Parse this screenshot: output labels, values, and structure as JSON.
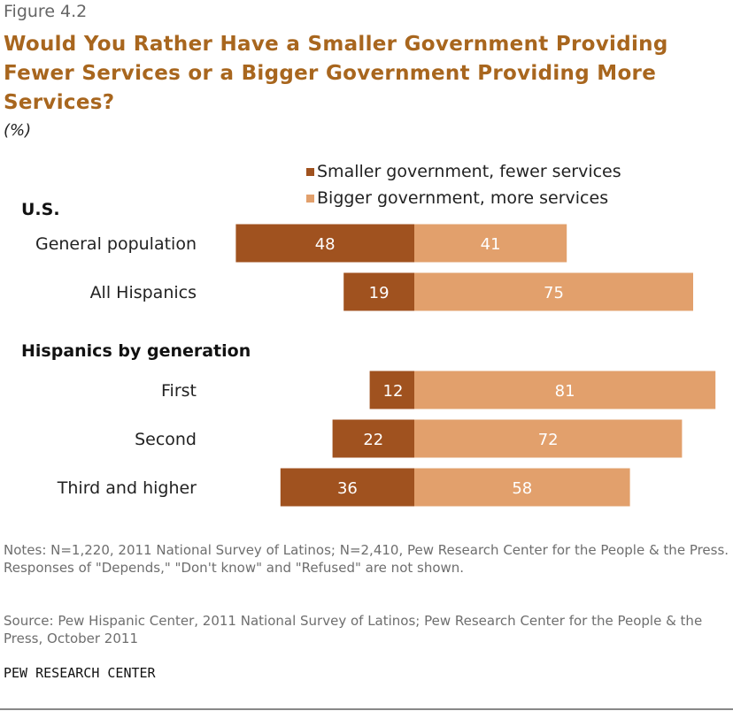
{
  "figure_label": "Figure 4.2",
  "title": "Would You Rather Have a Smaller Government Providing Fewer Services or a Bigger Government Providing More Services?",
  "subtitle": "(%)",
  "colors": {
    "smaller": "#a0521f",
    "bigger": "#e2a06c",
    "title": "#a8661e"
  },
  "chart_data": {
    "type": "bar",
    "orientation": "horizontal",
    "stacking": "diverging",
    "legend_position": "top-right",
    "groups": [
      {
        "label": "U.S.",
        "categories": [
          "General population",
          "All Hispanics"
        ]
      },
      {
        "label": "Hispanics by generation",
        "categories": [
          "First",
          "Second",
          "Third and higher"
        ]
      }
    ],
    "categories": [
      "General population",
      "All Hispanics",
      "First",
      "Second",
      "Third and higher"
    ],
    "series": [
      {
        "name": "Smaller government, fewer services",
        "values": [
          48,
          19,
          12,
          22,
          36
        ]
      },
      {
        "name": "Bigger government, more services",
        "values": [
          41,
          75,
          81,
          72,
          58
        ]
      }
    ]
  },
  "notes": "Notes: N=1,220,  2011 National Survey of Latinos; N=2,410, Pew Research Center for the People & the Press. Responses of \"Depends,\" \"Don't know\" and \"Refused\" are not shown.",
  "source": "Source: Pew Hispanic Center, 2011 National Survey of Latinos; Pew Research Center for the People & the Press, October 2011",
  "brand": "PEW RESEARCH CENTER"
}
